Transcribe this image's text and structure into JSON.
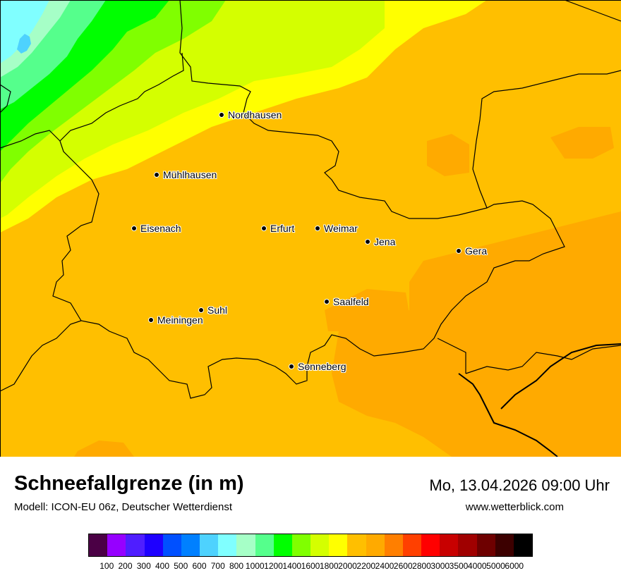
{
  "map": {
    "cities": [
      {
        "name": "Nordhausen"
      },
      {
        "name": "Mühlhausen"
      },
      {
        "name": "Eisenach"
      },
      {
        "name": "Erfurt"
      },
      {
        "name": "Weimar"
      },
      {
        "name": "Jena"
      },
      {
        "name": "Gera"
      },
      {
        "name": "Suhl"
      },
      {
        "name": "Meiningen"
      },
      {
        "name": "Saalfeld"
      },
      {
        "name": "Sonneberg"
      }
    ],
    "colors": {
      "cyan": "#80ffff",
      "light_cyan": "#4ed2fe",
      "mint": "#a6ffc7",
      "light_green": "#55ff8c",
      "green": "#00ff00",
      "yellow_green": "#80ff00",
      "lime": "#d4ff00",
      "yellow": "#ffff00",
      "amber": "#ffbf00",
      "dark_amber": "#ffaa00"
    }
  },
  "header": {
    "title": "Schneefallgrenze (in m)",
    "model": "Modell: ICON-EU 06z, Deutscher Wetterdienst",
    "datetime": "Mo, 13.04.2026 09:00 Uhr",
    "website": "www.wetterblick.com"
  },
  "legend": {
    "colors": [
      "#4b0045",
      "#9600ff",
      "#4f1eff",
      "#1e00ff",
      "#0050ff",
      "#0080ff",
      "#4ed2fe",
      "#80ffff",
      "#a6ffc7",
      "#55ff8c",
      "#00ff00",
      "#80ff00",
      "#d4ff00",
      "#ffff00",
      "#ffbf00",
      "#ffaa00",
      "#ff7f00",
      "#ff4000",
      "#ff0000",
      "#c80000",
      "#a00000",
      "#6e0000",
      "#3c0000",
      "#000000"
    ],
    "labels": [
      "100",
      "200",
      "300",
      "400",
      "500",
      "600",
      "700",
      "800",
      "1000",
      "1200",
      "1400",
      "1600",
      "1800",
      "2000",
      "2200",
      "2400",
      "2600",
      "2800",
      "3000",
      "3500",
      "4000",
      "5000",
      "6000"
    ]
  }
}
